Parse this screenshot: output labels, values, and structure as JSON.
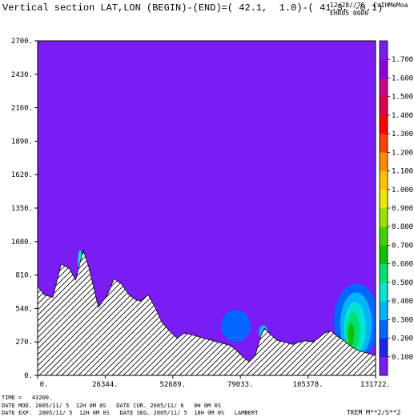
{
  "header": {
    "title": "Vertical section LAT,LON (BEGIN)-(END)=( 42.1,  1.0)-( 41.3, -0.1)",
    "date_code": "12/28//7C",
    "user": "CvIHMeMoa",
    "run": "EHR05 0000"
  },
  "footer": {
    "time": "TIME =   43200.",
    "line1": "DATE MOD. 2005/11/ 5  12H 0M 0S   DATE CUR. 2005/11/ 6   0H 0M 0S",
    "line2": "DATE EXP.  2005/11/ 5  12H 0M 0S   DATE SEG. 2005/11/ 5  18H 0M 0S   LAMBERT",
    "units": "TKEM M**2/S**2"
  },
  "colors": {
    "background_field": "#7a1df5",
    "hatch": "#000000"
  },
  "chart_data": {
    "type": "heatmap",
    "x_ticks": [
      "0.",
      "26344.",
      "52689.",
      "79033.",
      "105378.",
      "131722."
    ],
    "y_ticks": [
      "0.",
      "270.",
      "540.",
      "810.",
      "1080.",
      "1350.",
      "1620.",
      "1890.",
      "2160.",
      "2430.",
      "2700."
    ],
    "xlim": [
      0,
      131722
    ],
    "ylim": [
      0,
      2700
    ],
    "terrain": [
      [
        0,
        720
      ],
      [
        2600,
        650
      ],
      [
        5900,
        630
      ],
      [
        9200,
        900
      ],
      [
        12500,
        860
      ],
      [
        14800,
        770
      ],
      [
        17800,
        1010
      ],
      [
        20000,
        870
      ],
      [
        23700,
        550
      ],
      [
        27200,
        650
      ],
      [
        29800,
        780
      ],
      [
        32600,
        740
      ],
      [
        35600,
        650
      ],
      [
        38300,
        610
      ],
      [
        40100,
        600
      ],
      [
        43100,
        650
      ],
      [
        45800,
        550
      ],
      [
        48400,
        430
      ],
      [
        51400,
        360
      ],
      [
        54400,
        300
      ],
      [
        57000,
        340
      ],
      [
        59700,
        330
      ],
      [
        75200,
        240
      ],
      [
        77100,
        210
      ],
      [
        79000,
        170
      ],
      [
        80600,
        140
      ],
      [
        82500,
        110
      ],
      [
        84800,
        160
      ],
      [
        87200,
        330
      ],
      [
        88500,
        380
      ],
      [
        90800,
        330
      ],
      [
        93700,
        280
      ],
      [
        96400,
        270
      ],
      [
        99300,
        250
      ],
      [
        102200,
        270
      ],
      [
        104600,
        280
      ],
      [
        107200,
        270
      ],
      [
        109500,
        300
      ],
      [
        111700,
        340
      ],
      [
        114400,
        360
      ],
      [
        116500,
        320
      ],
      [
        119500,
        280
      ],
      [
        122400,
        230
      ],
      [
        125000,
        200
      ],
      [
        128400,
        180
      ],
      [
        131722,
        160
      ]
    ],
    "colorbar": {
      "levels": [
        "0.100",
        "0.200",
        "0.300",
        "0.400",
        "0.500",
        "0.600",
        "0.700",
        "0.800",
        "0.900",
        "1.000",
        "1.100",
        "1.200",
        "1.300",
        "1.400",
        "1.500",
        "1.600",
        "1.700"
      ],
      "colors": [
        "#7a1df5",
        "#2020f0",
        "#0066ff",
        "#00b4ff",
        "#00e6d0",
        "#00e070",
        "#10c000",
        "#44d000",
        "#9ce000",
        "#e8e800",
        "#ffc000",
        "#ff8c00",
        "#ff4000",
        "#ff0000",
        "#e0004a",
        "#d0008a",
        "#8a00e0",
        "#7a1df5"
      ]
    },
    "features": [
      {
        "kind": "blob",
        "level": "0.200",
        "cx": 77300,
        "cy": 400,
        "rx": 5700,
        "ry": 130
      },
      {
        "kind": "blob",
        "level": "0.200",
        "cx": 124300,
        "cy": 440,
        "rx": 8800,
        "ry": 300
      },
      {
        "kind": "blob",
        "level": "0.300",
        "cx": 124100,
        "cy": 410,
        "rx": 6200,
        "ry": 260
      },
      {
        "kind": "blob",
        "level": "0.400",
        "cx": 123700,
        "cy": 380,
        "rx": 4200,
        "ry": 210
      },
      {
        "kind": "blob",
        "level": "0.500",
        "cx": 122900,
        "cy": 350,
        "rx": 2700,
        "ry": 160
      },
      {
        "kind": "blob",
        "level": "0.600",
        "cx": 122200,
        "cy": 330,
        "rx": 1200,
        "ry": 90
      },
      {
        "kind": "blob",
        "level": "0.300",
        "cx": 88000,
        "cy": 345,
        "rx": 1800,
        "ry": 60
      },
      {
        "kind": "blob",
        "level": "0.400",
        "cx": 16500,
        "cy": 920,
        "rx": 800,
        "ry": 90
      }
    ]
  }
}
